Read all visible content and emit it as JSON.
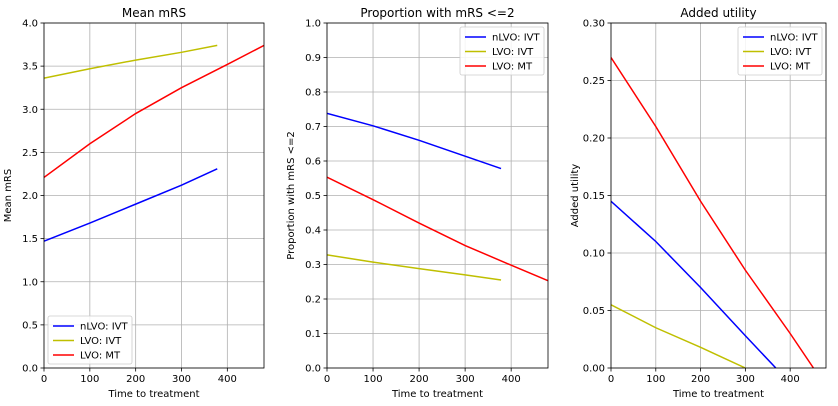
{
  "chart_data": [
    {
      "type": "line",
      "title": "Mean mRS",
      "xlabel": "Time to treatment",
      "ylabel": "Mean mRS",
      "xlim": [
        0,
        480
      ],
      "ylim": [
        0,
        4.0
      ],
      "xticks": [
        0,
        100,
        200,
        300,
        400
      ],
      "yticks": [
        0.0,
        0.5,
        1.0,
        1.5,
        2.0,
        2.5,
        3.0,
        3.5,
        4.0
      ],
      "ytick_labels": [
        "0.0",
        "0.5",
        "1.0",
        "1.5",
        "2.0",
        "2.5",
        "3.0",
        "3.5",
        "4.0"
      ],
      "grid": true,
      "legend_position": "bottom-left",
      "series": [
        {
          "name": "nLVO: IVT",
          "color": "#0000ff",
          "x": [
            0,
            100,
            200,
            300,
            378
          ],
          "y": [
            1.47,
            1.68,
            1.9,
            2.12,
            2.31
          ]
        },
        {
          "name": "LVO: IVT",
          "color": "#bfbf00",
          "x": [
            0,
            100,
            200,
            300,
            378
          ],
          "y": [
            3.36,
            3.47,
            3.57,
            3.66,
            3.74
          ]
        },
        {
          "name": "LVO: MT",
          "color": "#ff0000",
          "x": [
            0,
            100,
            200,
            300,
            400,
            480
          ],
          "y": [
            2.21,
            2.6,
            2.95,
            3.25,
            3.52,
            3.74
          ]
        }
      ]
    },
    {
      "type": "line",
      "title": "Proportion with mRS <=2",
      "xlabel": "Time to treatment",
      "ylabel": "Proportion with mRS <=2",
      "xlim": [
        0,
        480
      ],
      "ylim": [
        0,
        1.0
      ],
      "xticks": [
        0,
        100,
        200,
        300,
        400
      ],
      "yticks": [
        0.0,
        0.1,
        0.2,
        0.3,
        0.4,
        0.5,
        0.6,
        0.7,
        0.8,
        0.9,
        1.0
      ],
      "ytick_labels": [
        "0.0",
        "0.1",
        "0.2",
        "0.3",
        "0.4",
        "0.5",
        "0.6",
        "0.7",
        "0.8",
        "0.9",
        "1.0"
      ],
      "grid": true,
      "legend_position": "top-right",
      "series": [
        {
          "name": "nLVO: IVT",
          "color": "#0000ff",
          "x": [
            0,
            100,
            200,
            300,
            378
          ],
          "y": [
            0.738,
            0.702,
            0.66,
            0.614,
            0.578
          ]
        },
        {
          "name": "LVO: IVT",
          "color": "#bfbf00",
          "x": [
            0,
            100,
            200,
            300,
            378
          ],
          "y": [
            0.328,
            0.307,
            0.288,
            0.27,
            0.255
          ]
        },
        {
          "name": "LVO: MT",
          "color": "#ff0000",
          "x": [
            0,
            100,
            200,
            300,
            400,
            480
          ],
          "y": [
            0.553,
            0.488,
            0.42,
            0.355,
            0.298,
            0.253
          ]
        }
      ]
    },
    {
      "type": "line",
      "title": "Added utility",
      "xlabel": "Time to treatment",
      "ylabel": "Added utility",
      "xlim": [
        0,
        480
      ],
      "ylim": [
        0,
        0.3
      ],
      "xticks": [
        0,
        100,
        200,
        300,
        400
      ],
      "yticks": [
        0.0,
        0.05,
        0.1,
        0.15,
        0.2,
        0.25,
        0.3
      ],
      "ytick_labels": [
        "0.00",
        "0.05",
        "0.10",
        "0.15",
        "0.20",
        "0.25",
        "0.30"
      ],
      "grid": true,
      "legend_position": "top-right",
      "series": [
        {
          "name": "nLVO: IVT",
          "color": "#0000ff",
          "x": [
            0,
            100,
            200,
            300,
            368
          ],
          "y": [
            0.145,
            0.11,
            0.07,
            0.028,
            0.0
          ]
        },
        {
          "name": "LVO: IVT",
          "color": "#bfbf00",
          "x": [
            0,
            100,
            200,
            250,
            300
          ],
          "y": [
            0.055,
            0.035,
            0.018,
            0.009,
            0.0
          ]
        },
        {
          "name": "LVO: MT",
          "color": "#ff0000",
          "x": [
            0,
            100,
            200,
            300,
            400,
            452
          ],
          "y": [
            0.27,
            0.21,
            0.145,
            0.085,
            0.03,
            0.0
          ]
        }
      ]
    }
  ]
}
